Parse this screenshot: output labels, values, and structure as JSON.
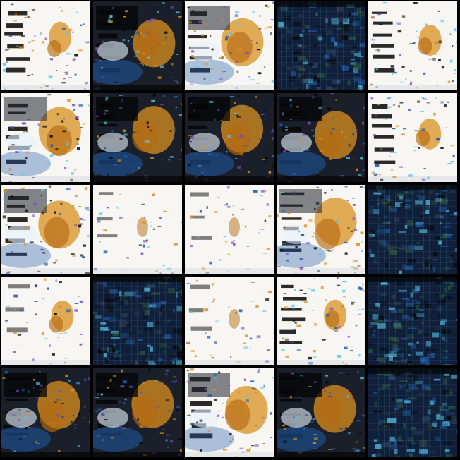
{
  "grid": {
    "rows": 5,
    "cols": 5,
    "tiles": [
      "light",
      "dark-mix",
      "light-mix",
      "dark",
      "light",
      "light-mix",
      "dark-mix",
      "dark-mix",
      "dark-mix",
      "light",
      "light-mix",
      "sparse",
      "sparse",
      "light-mix",
      "dark",
      "sparse-orange",
      "dark",
      "sparse",
      "light",
      "dark",
      "dark-mix",
      "dark-mix",
      "light-mix",
      "dark-mix",
      "dark"
    ]
  },
  "palette": {
    "white": "#f7f6f3",
    "black": "#060606",
    "navy": "#10203a",
    "blue": "#1f5aa6",
    "cyan": "#58c6e8",
    "orange": "#d9901f",
    "amber": "#b56b12",
    "purple": "#7b4bc0",
    "green": "#2e5a3a"
  }
}
